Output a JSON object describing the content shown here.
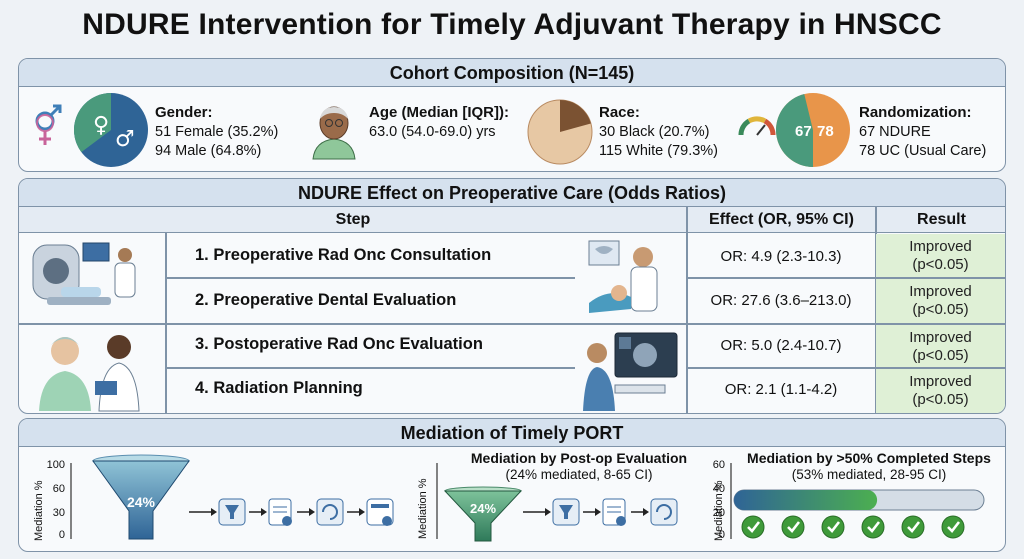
{
  "title": "NDURE Intervention for Timely Adjuvant Therapy in HNSCC",
  "cohort": {
    "heading": "Cohort Composition (N=145)",
    "gender": {
      "label": "Gender:",
      "line1": "51 Female (35.2%)",
      "line2": "94 Male (64.8%)",
      "female_frac": 0.352
    },
    "age": {
      "label": "Age (Median [IQR]):",
      "line1": "63.0 (54.0-69.0) yrs"
    },
    "race": {
      "label": "Race:",
      "line1": "30 Black (20.7%)",
      "line2": "115 White (79.3%)",
      "black_frac": 0.207
    },
    "randomization": {
      "label": "Randomization:",
      "line1": "67 NDURE",
      "line2": "78 UC (Usual Care)",
      "a": "67",
      "b": "78",
      "a_frac": 0.462
    }
  },
  "odds": {
    "heading": "NDURE Effect on Preoperative Care (Odds Ratios)",
    "col_step": "Step",
    "col_effect": "Effect (OR, 95% CI)",
    "col_result": "Result",
    "rows": [
      {
        "step": "1. Preoperative Rad Onc Consultation",
        "or": "OR: 4.9 (2.3-10.3)",
        "r1": "Improved",
        "r2": "(p<0.05)"
      },
      {
        "step": "2. Preoperative Dental Evaluation",
        "or": "OR: 27.6 (3.6–213.0)",
        "r1": "Improved",
        "r2": "(p<0.05)"
      },
      {
        "step": "3. Postoperative Rad Onc Evaluation",
        "or": "OR: 5.0 (2.4-10.7)",
        "r1": "Improved",
        "r2": "(p<0.05)"
      },
      {
        "step": "4. Radiation Planning",
        "or": "OR: 2.1 (1.1-4.2)",
        "r1": "Improved",
        "r2": "(p<0.05)"
      }
    ]
  },
  "mediation": {
    "heading": "Mediation of Timely PORT",
    "ylabel": "Mediation %",
    "panel1": {
      "ticks": [
        "100",
        "60",
        "30",
        "0"
      ],
      "funnel_label": "24%",
      "value": 24
    },
    "panel2": {
      "title": "Mediation by Post-op Evaluation",
      "subtitle": "(24% mediated, 8-65 CI)",
      "funnel_label": "24%",
      "value": 24
    },
    "panel3": {
      "title": "Mediation by >50% Completed Steps",
      "subtitle": "(53% mediated, 28-95 CI)",
      "ticks": [
        "60",
        "40",
        "20",
        "0"
      ],
      "value": 53
    }
  },
  "colors": {
    "teal": "#4a9a7c",
    "blue": "#2f6496",
    "orange": "#e8954a",
    "green_check": "#3f9a3a",
    "result_bg": "#dff0d6"
  }
}
